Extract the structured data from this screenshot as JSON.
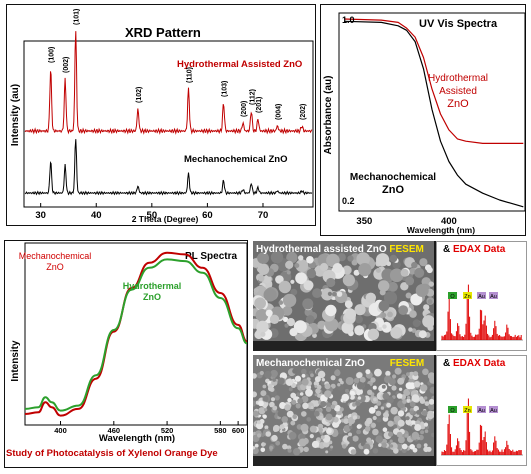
{
  "colors": {
    "red": "#c00000",
    "black": "#000000",
    "green": "#2ca02c",
    "yellow": "#ffe600",
    "dark_red": "#e00000"
  },
  "chart_data": [
    {
      "type": "line",
      "title": "XRD Pattern",
      "xlabel": "2 Theta (Degree)",
      "ylabel": "Intensity (au)",
      "xlim": [
        27,
        79
      ],
      "xticks": [
        30,
        40,
        50,
        60,
        70
      ],
      "series": [
        {
          "name": "Hydrothermal Assisted ZnO",
          "color": "#c00000",
          "peaks": [
            [
              31.8,
              0.62
            ],
            [
              34.4,
              0.52
            ],
            [
              36.3,
              1.0
            ],
            [
              47.5,
              0.22
            ],
            [
              56.6,
              0.42
            ],
            [
              62.9,
              0.28
            ],
            [
              66.4,
              0.08
            ],
            [
              67.9,
              0.2
            ],
            [
              69.1,
              0.12
            ],
            [
              72.6,
              0.05
            ],
            [
              77.0,
              0.05
            ]
          ]
        },
        {
          "name": "Mechanochemical ZnO",
          "color": "#000000",
          "peaks": [
            [
              31.8,
              0.46
            ],
            [
              34.4,
              0.4
            ],
            [
              36.3,
              0.78
            ],
            [
              47.5,
              0.1
            ],
            [
              56.6,
              0.28
            ],
            [
              62.9,
              0.18
            ],
            [
              66.4,
              0.05
            ],
            [
              67.9,
              0.14
            ],
            [
              69.1,
              0.08
            ],
            [
              72.6,
              0.03
            ],
            [
              77.0,
              0.03
            ]
          ]
        }
      ],
      "annotations": [
        "(100)",
        "(002)",
        "(101)",
        "(102)",
        "(110)",
        "(103)",
        "(200)",
        "(112)",
        "(201)",
        "(004)",
        "(202)"
      ]
    },
    {
      "type": "line",
      "title": "UV Vis Spectra",
      "xlabel": "Wavelength (nm)",
      "ylabel": "Absorbance (au)",
      "xlim": [
        335,
        445
      ],
      "xticks": [
        350,
        400
      ],
      "ylim": [
        0.2,
        1.0
      ],
      "yticks": [
        0.2,
        1.0
      ],
      "series": [
        {
          "name": "Hydrothermal Assisted ZnO",
          "color": "#c00000",
          "points": [
            [
              338,
              1.0
            ],
            [
              360,
              0.995
            ],
            [
              370,
              0.985
            ],
            [
              375,
              0.96
            ],
            [
              380,
              0.92
            ],
            [
              385,
              0.83
            ],
            [
              390,
              0.69
            ],
            [
              395,
              0.58
            ],
            [
              400,
              0.51
            ],
            [
              405,
              0.47
            ],
            [
              410,
              0.46
            ],
            [
              420,
              0.45
            ],
            [
              444,
              0.45
            ]
          ]
        },
        {
          "name": "Mechanochemical ZnO",
          "color": "#000000",
          "points": [
            [
              338,
              0.99
            ],
            [
              360,
              0.985
            ],
            [
              370,
              0.97
            ],
            [
              375,
              0.95
            ],
            [
              380,
              0.9
            ],
            [
              385,
              0.78
            ],
            [
              390,
              0.6
            ],
            [
              395,
              0.46
            ],
            [
              400,
              0.37
            ],
            [
              405,
              0.31
            ],
            [
              410,
              0.27
            ],
            [
              420,
              0.23
            ],
            [
              430,
              0.2
            ],
            [
              444,
              0.17
            ]
          ]
        }
      ]
    },
    {
      "type": "line",
      "title": "PL Spectra",
      "xlabel": "Wavelength (nm)",
      "ylabel": "Intensity",
      "xlim": [
        360,
        610
      ],
      "xticks": [
        400,
        460,
        520,
        580,
        600
      ],
      "series": [
        {
          "name": "Mechanochemical ZnO",
          "color": "#c00000",
          "points": [
            [
              360,
              0.03
            ],
            [
              375,
              0.04
            ],
            [
              383,
              0.1
            ],
            [
              390,
              0.07
            ],
            [
              400,
              0.02
            ],
            [
              420,
              0.06
            ],
            [
              440,
              0.24
            ],
            [
              460,
              0.52
            ],
            [
              480,
              0.78
            ],
            [
              500,
              0.93
            ],
            [
              520,
              0.99
            ],
            [
              540,
              0.98
            ],
            [
              560,
              0.9
            ],
            [
              580,
              0.75
            ],
            [
              600,
              0.56
            ],
            [
              610,
              0.46
            ]
          ]
        },
        {
          "name": "Hydrothermal ZnO",
          "color": "#2ca02c",
          "points": [
            [
              360,
              0.06
            ],
            [
              375,
              0.07
            ],
            [
              383,
              0.13
            ],
            [
              390,
              0.1
            ],
            [
              400,
              0.05
            ],
            [
              420,
              0.08
            ],
            [
              440,
              0.26
            ],
            [
              460,
              0.53
            ],
            [
              480,
              0.77
            ],
            [
              500,
              0.9
            ],
            [
              520,
              0.95
            ],
            [
              540,
              0.94
            ],
            [
              560,
              0.87
            ],
            [
              580,
              0.72
            ],
            [
              600,
              0.54
            ],
            [
              610,
              0.45
            ]
          ]
        }
      ]
    }
  ],
  "sem_panels": [
    {
      "label": "Hydrothermal assisted ZnO",
      "fesem": "FESEM",
      "amp": "&",
      "edax": "EDAX Data",
      "edax_labels": [
        "O",
        "Zn",
        "Au",
        "Au"
      ]
    },
    {
      "label": "Mechanochemical ZnO",
      "fesem": "FESEM",
      "amp": "&",
      "edax": "EDAX Data",
      "edax_labels": [
        "O",
        "Zn",
        "Au",
        "Au"
      ]
    }
  ],
  "caption": "Study of Photocatalysis of Xylenol Orange Dye"
}
